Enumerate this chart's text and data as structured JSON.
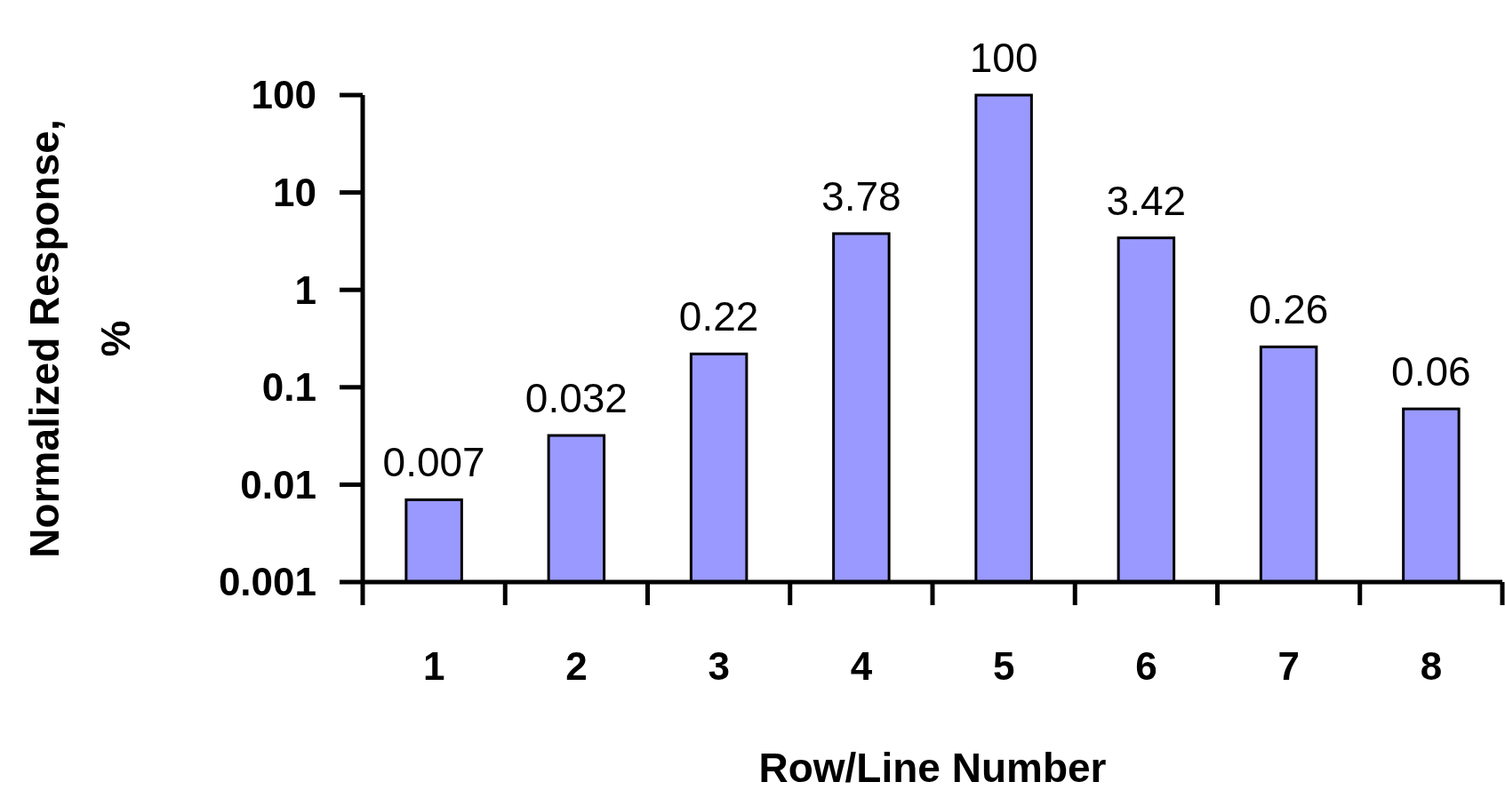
{
  "chart_data": {
    "type": "bar",
    "xlabel": "Row/Line Number",
    "ylabel": "Normalized Response, %",
    "categories": [
      "1",
      "2",
      "3",
      "4",
      "5",
      "6",
      "7",
      "8"
    ],
    "values": [
      0.007,
      0.032,
      0.22,
      3.78,
      100,
      3.42,
      0.26,
      0.06
    ],
    "color": "#9999ff",
    "log": true,
    "ylim": [
      0.001,
      100
    ],
    "yticks": [
      0.001,
      0.01,
      0.1,
      1,
      10,
      100
    ],
    "data_labels": true,
    "grid": false
  }
}
